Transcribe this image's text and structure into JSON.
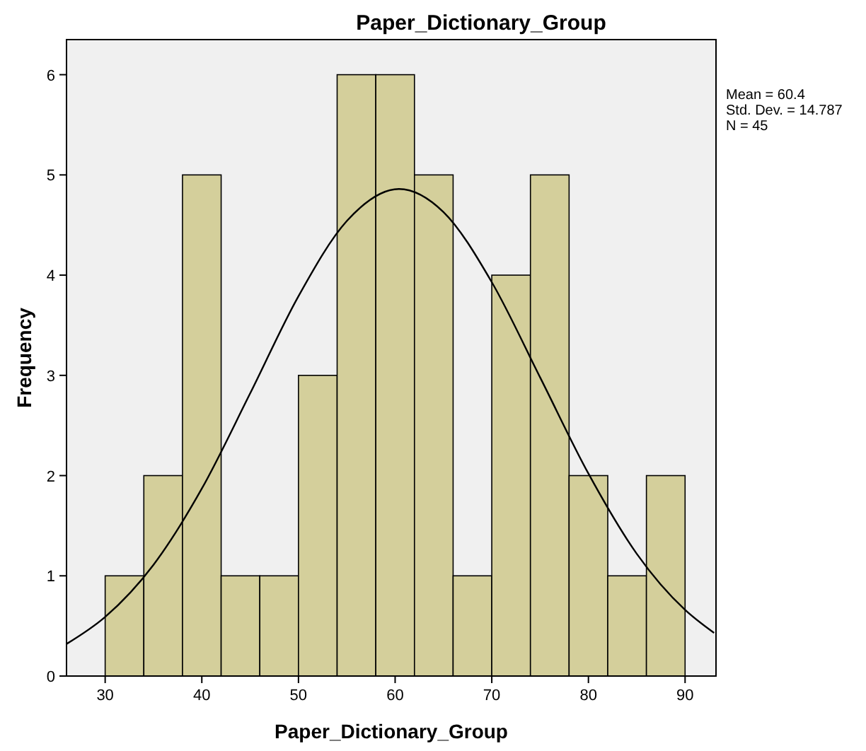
{
  "chart_data": {
    "type": "histogram",
    "title": "Paper_Dictionary_Group",
    "xlabel": "Paper_Dictionary_Group",
    "ylabel": "Frequency",
    "bins": [
      30,
      34,
      38,
      42,
      46,
      50,
      54,
      58,
      62,
      66,
      70,
      74,
      78,
      82,
      86,
      90
    ],
    "values": [
      1,
      2,
      5,
      1,
      1,
      3,
      6,
      6,
      5,
      1,
      4,
      5,
      2,
      1,
      2
    ],
    "color": "#d4cf9b",
    "series": [
      {
        "type": "line",
        "color": "#000000",
        "x": [
          26,
          30,
          35,
          40,
          45,
          50,
          55,
          60.4,
          65,
          70,
          75,
          80,
          85,
          90,
          93
        ],
        "values": [
          0.32,
          0.59,
          1.11,
          1.87,
          2.82,
          3.79,
          4.54,
          4.86,
          4.63,
          3.93,
          2.98,
          2.02,
          1.22,
          0.66,
          0.43
        ]
      }
    ],
    "xlim": [
      26,
      93.2
    ],
    "xticks": [
      30,
      40,
      50,
      60,
      70,
      80,
      90
    ],
    "ylim": [
      0,
      6.35
    ],
    "yticks": [
      0,
      1,
      2,
      3,
      4,
      5,
      6
    ],
    "grid": false,
    "line_style": "solid",
    "marker": "none",
    "annotations": [
      "Mean = 60.4",
      "Std. Dev. = 14.787",
      "N = 45"
    ]
  }
}
